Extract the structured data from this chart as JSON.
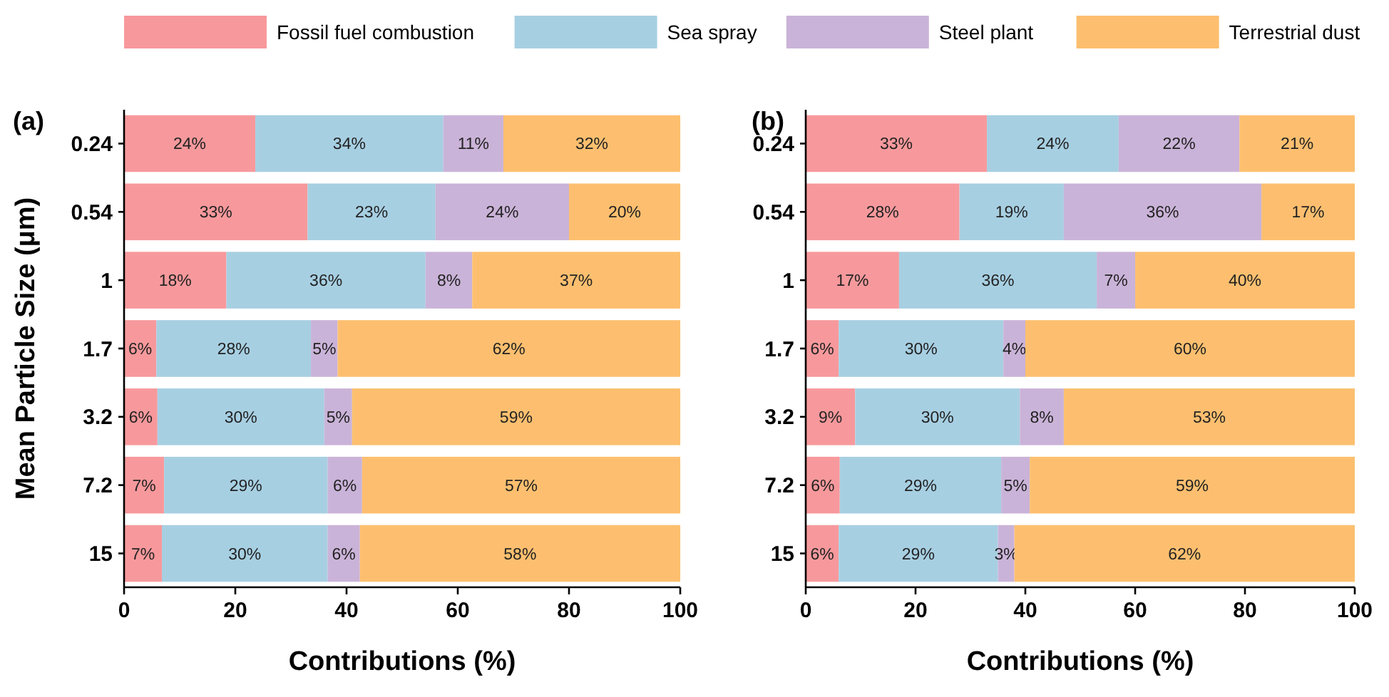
{
  "chart_data": [
    {
      "type": "bar",
      "title": "(a)",
      "orientation": "horizontal",
      "stacked": true,
      "legend": "top",
      "ylabel": "Mean Particle Size (μm)",
      "xlabel": "Contributions (%)",
      "categories": [
        "0.24",
        "0.54",
        "1",
        "1.7",
        "3.2",
        "7.2",
        "15"
      ],
      "xlim": [
        0,
        100
      ],
      "xticks": [
        0,
        20,
        40,
        60,
        80,
        100
      ],
      "series": [
        {
          "name": "Fossil fuel combustion",
          "color": "#f7999c",
          "values": [
            23.6,
            33,
            18.4,
            5.8,
            6,
            7.2,
            6.8
          ],
          "value_labels": [
            "24%",
            "33%",
            "18%",
            "6%",
            "6%",
            "7%",
            "7%"
          ]
        },
        {
          "name": "Sea spray",
          "color": "#a7cfe2",
          "values": [
            33.8,
            23,
            35.8,
            27.8,
            30,
            29.4,
            29.8
          ],
          "value_labels": [
            "34%",
            "23%",
            "36%",
            "28%",
            "30%",
            "29%",
            "30%"
          ]
        },
        {
          "name": "Steel plant",
          "color": "#cab3d8",
          "values": [
            10.8,
            24,
            8.4,
            4.8,
            5,
            6.2,
            5.8
          ],
          "value_labels": [
            "11%",
            "24%",
            "8%",
            "5%",
            "5%",
            "6%",
            "6%"
          ]
        },
        {
          "name": "Terrestrial dust",
          "color": "#fdbf6f",
          "values": [
            31.8,
            20,
            37.4,
            61.6,
            59,
            57.2,
            57.6
          ],
          "value_labels": [
            "32%",
            "20%",
            "37%",
            "62%",
            "59%",
            "57%",
            "58%"
          ]
        }
      ]
    },
    {
      "type": "bar",
      "title": "(b)",
      "orientation": "horizontal",
      "stacked": true,
      "xlabel": "Contributions (%)",
      "categories": [
        "0.24",
        "0.54",
        "1",
        "1.7",
        "3.2",
        "7.2",
        "15"
      ],
      "xlim": [
        0,
        100
      ],
      "xticks": [
        0,
        20,
        40,
        60,
        80,
        100
      ],
      "series": [
        {
          "color": "#f7999c",
          "values": [
            33,
            28,
            17,
            6,
            9,
            6.2,
            6
          ],
          "value_labels": [
            "33%",
            "28%",
            "17%",
            "6%",
            "9%",
            "6%",
            "6%"
          ]
        },
        {
          "color": "#a7cfe2",
          "values": [
            24,
            19,
            36,
            30,
            30,
            29.4,
            29
          ],
          "value_labels": [
            "24%",
            "19%",
            "36%",
            "30%",
            "30%",
            "29%",
            "29%"
          ]
        },
        {
          "color": "#cab3d8",
          "values": [
            22,
            36,
            7,
            4,
            8,
            5.2,
            3
          ],
          "value_labels": [
            "22%",
            "36%",
            "7%",
            "4%",
            "8%",
            "5%",
            "3%"
          ]
        },
        {
          "color": "#fdbf6f",
          "values": [
            21,
            17,
            40,
            60,
            53,
            59.2,
            62
          ],
          "value_labels": [
            "21%",
            "17%",
            "40%",
            "60%",
            "53%",
            "59%",
            "62%"
          ]
        }
      ]
    }
  ]
}
